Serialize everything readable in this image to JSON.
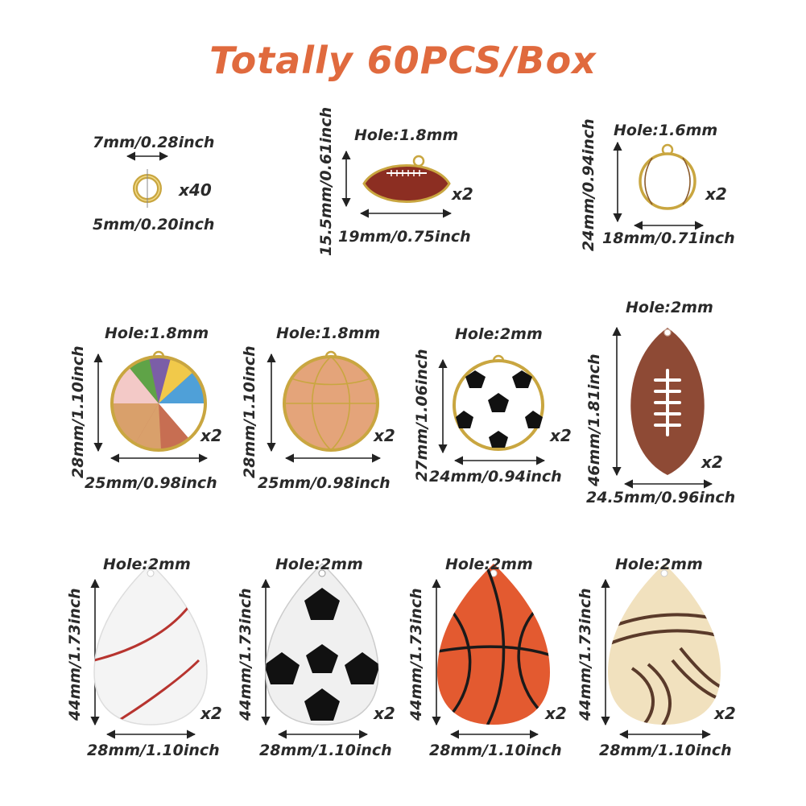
{
  "title": "Totally 60PCS/Box",
  "items": [
    {
      "name": "jump-ring",
      "width": "7mm/0.28inch",
      "height": "5mm/0.20inch",
      "qty": "x40"
    },
    {
      "name": "football-small",
      "hole": "Hole:1.8mm",
      "height": "15.5mm/0.61inch",
      "width": "19mm/0.75inch",
      "qty": "x2"
    },
    {
      "name": "baseball-small",
      "hole": "Hole:1.6mm",
      "height": "24mm/0.94inch",
      "width": "18mm/0.71inch",
      "qty": "x2"
    },
    {
      "name": "beach-ball",
      "hole": "Hole:1.8mm",
      "height": "28mm/1.10inch",
      "width": "25mm/0.98inch",
      "qty": "x2"
    },
    {
      "name": "basketball-round",
      "hole": "Hole:1.8mm",
      "height": "28mm/1.10inch",
      "width": "25mm/0.98inch",
      "qty": "x2"
    },
    {
      "name": "soccer-round",
      "hole": "Hole:2mm",
      "height": "27mm/1.06inch",
      "width": "24mm/0.94inch",
      "qty": "x2"
    },
    {
      "name": "football-large",
      "hole": "Hole:2mm",
      "height": "46mm/1.81inch",
      "width": "24.5mm/0.96inch",
      "qty": "x2"
    },
    {
      "name": "baseball-drop",
      "hole": "Hole:2mm",
      "height": "44mm/1.73inch",
      "width": "28mm/1.10inch",
      "qty": "x2"
    },
    {
      "name": "soccer-drop",
      "hole": "Hole:2mm",
      "height": "44mm/1.73inch",
      "width": "28mm/1.10inch",
      "qty": "x2"
    },
    {
      "name": "basketball-drop",
      "hole": "Hole:2mm",
      "height": "44mm/1.73inch",
      "width": "28mm/1.10inch",
      "qty": "x2"
    },
    {
      "name": "volleyball-drop",
      "hole": "Hole:2mm",
      "height": "44mm/1.73inch",
      "width": "28mm/1.10inch",
      "qty": "x2"
    }
  ],
  "colors": {
    "title": "#e06a3e",
    "text": "#2a2a2a",
    "gold": "#c9a640"
  }
}
